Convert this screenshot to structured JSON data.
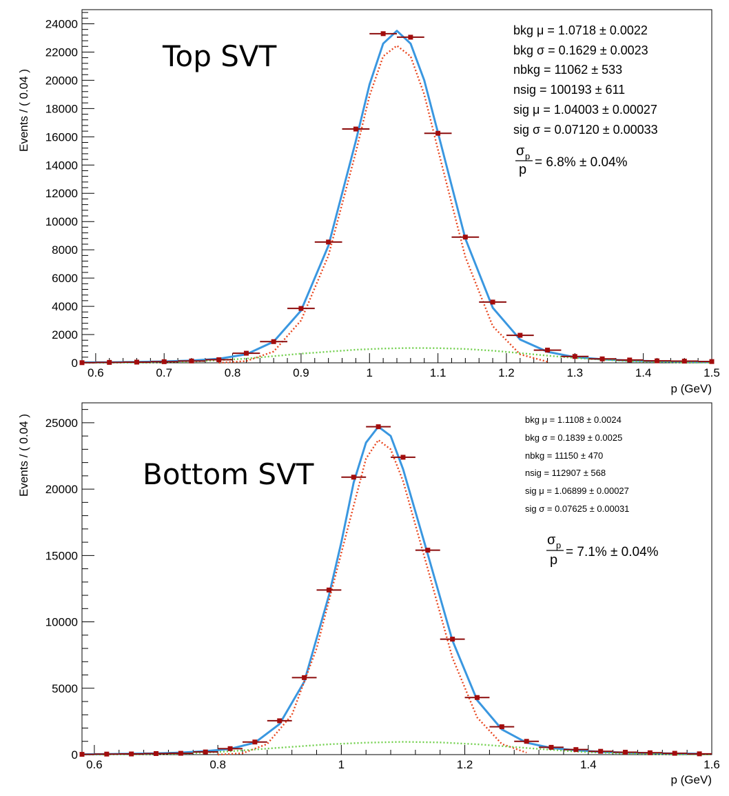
{
  "charts": [
    {
      "label": "Top SVT",
      "ylabel": "Events / ( 0.04 )",
      "xlabel": "p (GeV)",
      "stats": [
        "bkg μ =  1.0718 ± 0.0022",
        "bkg σ =  0.1629 ± 0.0023",
        "nbkg =  11062 ± 533",
        "nsig =  100193 ± 611",
        "sig μ =  1.04003 ± 0.00027",
        "sig σ =  0.07120 ± 0.00033"
      ],
      "resolution": {
        "num": "σ",
        "sub": "p",
        "den": "p",
        "value": "= 6.8% ±  0.04%"
      }
    },
    {
      "label": "Bottom SVT",
      "ylabel": "Events / ( 0.04 )",
      "xlabel": "p (GeV)",
      "stats": [
        "bkg μ =  1.1108 ± 0.0024",
        "bkg σ =  0.1839 ± 0.0025",
        "nbkg =  11150 ± 470",
        "nsig =  112907 ± 568",
        "sig μ =  1.06899 ± 0.00027",
        "sig σ =  0.07625 ± 0.00031"
      ],
      "resolution": {
        "num": "σ",
        "sub": "p",
        "den": "p",
        "value": "= 7.1% ± 0.04%"
      }
    }
  ],
  "chart_data": [
    {
      "type": "scatter",
      "title": "Top SVT",
      "xlabel": "p (GeV)",
      "ylabel": "Events / ( 0.04 )",
      "xlim": [
        0.58,
        1.5
      ],
      "ylim": [
        0,
        25000
      ],
      "xticks": [
        0.6,
        0.7,
        0.8,
        0.9,
        1,
        1.1,
        1.2,
        1.3,
        1.4,
        1.5
      ],
      "xtick_labels": [
        "0.6",
        "0.7",
        "0.8",
        "0.9",
        "1",
        "1.1",
        "1.2",
        "1.3",
        "1.4",
        "1.5"
      ],
      "yticks": [
        0,
        2000,
        4000,
        6000,
        8000,
        10000,
        12000,
        14000,
        16000,
        18000,
        20000,
        22000,
        24000
      ],
      "ytick_labels": [
        "0",
        "2000",
        "4000",
        "6000",
        "8000",
        "10000",
        "12000",
        "14000",
        "16000",
        "18000",
        "20000",
        "22000",
        "24000"
      ],
      "bin_width": 0.04,
      "points": {
        "x": [
          0.58,
          0.62,
          0.66,
          0.7,
          0.74,
          0.78,
          0.82,
          0.86,
          0.9,
          0.94,
          0.98,
          1.02,
          1.06,
          1.1,
          1.14,
          1.18,
          1.22,
          1.26,
          1.3,
          1.34,
          1.38,
          1.42,
          1.46,
          1.5
        ],
        "y": [
          10,
          30,
          50,
          80,
          130,
          220,
          680,
          1500,
          3850,
          8550,
          16550,
          23300,
          23050,
          16250,
          8900,
          4300,
          1950,
          900,
          450,
          280,
          200,
          140,
          120,
          90
        ]
      },
      "curves": [
        {
          "name": "total",
          "color": "#3a97e0",
          "style": "solid",
          "x": [
            0.58,
            0.62,
            0.66,
            0.7,
            0.74,
            0.78,
            0.82,
            0.86,
            0.9,
            0.94,
            0.98,
            1.0,
            1.02,
            1.04,
            1.06,
            1.08,
            1.1,
            1.14,
            1.18,
            1.22,
            1.26,
            1.3,
            1.34,
            1.38,
            1.42,
            1.46,
            1.5
          ],
          "y": [
            30,
            40,
            60,
            100,
            160,
            290,
            600,
            1500,
            3700,
            8300,
            15700,
            19700,
            22600,
            23500,
            22600,
            20000,
            16300,
            8800,
            3900,
            1650,
            780,
            400,
            250,
            160,
            110,
            80,
            50
          ]
        },
        {
          "name": "signal",
          "color": "#e8441c",
          "style": "dotted",
          "x": [
            0.78,
            0.82,
            0.86,
            0.9,
            0.94,
            0.98,
            1.0,
            1.02,
            1.04,
            1.06,
            1.08,
            1.1,
            1.14,
            1.18,
            1.22,
            1.26
          ],
          "y": [
            0,
            120,
            800,
            3000,
            7600,
            14900,
            18900,
            21700,
            22450,
            21700,
            19000,
            15100,
            7500,
            2600,
            600,
            80
          ]
        },
        {
          "name": "background",
          "color": "#6fcf4a",
          "style": "dotted",
          "x": [
            0.58,
            0.66,
            0.74,
            0.82,
            0.9,
            0.98,
            1.02,
            1.06,
            1.1,
            1.14,
            1.18,
            1.22,
            1.26,
            1.3,
            1.38,
            1.46,
            1.5
          ],
          "y": [
            0,
            15,
            80,
            300,
            650,
            930,
            1010,
            1050,
            1040,
            980,
            860,
            690,
            510,
            340,
            110,
            25,
            10
          ]
        }
      ]
    },
    {
      "type": "scatter",
      "title": "Bottom SVT",
      "xlabel": "p (GeV)",
      "ylabel": "Events / ( 0.04 )",
      "xlim": [
        0.58,
        1.6
      ],
      "ylim": [
        0,
        26500
      ],
      "xticks": [
        0.6,
        0.8,
        1,
        1.2,
        1.4,
        1.6
      ],
      "xtick_labels": [
        "0.6",
        "0.8",
        "1",
        "1.2",
        "1.4",
        "1.6"
      ],
      "yticks": [
        0,
        5000,
        10000,
        15000,
        20000,
        25000
      ],
      "ytick_labels": [
        "0",
        "5000",
        "10000",
        "15000",
        "20000",
        "25000"
      ],
      "bin_width": 0.04,
      "points": {
        "x": [
          0.58,
          0.62,
          0.66,
          0.7,
          0.74,
          0.78,
          0.82,
          0.86,
          0.9,
          0.94,
          0.98,
          1.02,
          1.06,
          1.1,
          1.14,
          1.18,
          1.22,
          1.26,
          1.3,
          1.34,
          1.38,
          1.42,
          1.46,
          1.5,
          1.54,
          1.58
        ],
        "y": [
          20,
          40,
          50,
          80,
          100,
          200,
          450,
          950,
          2550,
          5800,
          12400,
          20900,
          24700,
          22400,
          15400,
          8700,
          4300,
          2100,
          1000,
          550,
          380,
          250,
          180,
          140,
          100,
          60
        ]
      },
      "curves": [
        {
          "name": "total",
          "color": "#3a97e0",
          "style": "solid",
          "x": [
            0.58,
            0.62,
            0.66,
            0.7,
            0.74,
            0.78,
            0.82,
            0.86,
            0.9,
            0.94,
            0.98,
            1.0,
            1.02,
            1.04,
            1.06,
            1.08,
            1.1,
            1.14,
            1.18,
            1.22,
            1.26,
            1.3,
            1.34,
            1.38,
            1.42,
            1.46,
            1.5,
            1.54,
            1.58
          ],
          "y": [
            20,
            40,
            60,
            90,
            150,
            260,
            430,
            900,
            2300,
            5500,
            12000,
            16000,
            20500,
            23500,
            24700,
            24000,
            21500,
            15100,
            8600,
            4100,
            1900,
            900,
            500,
            320,
            210,
            150,
            110,
            80,
            60
          ]
        },
        {
          "name": "signal",
          "color": "#e8441c",
          "style": "dotted",
          "x": [
            0.8,
            0.84,
            0.88,
            0.92,
            0.96,
            1.0,
            1.04,
            1.06,
            1.08,
            1.1,
            1.14,
            1.18,
            1.22,
            1.26,
            1.3
          ],
          "y": [
            0,
            100,
            800,
            3000,
            8000,
            15200,
            22300,
            23700,
            23000,
            20600,
            14000,
            7300,
            2800,
            800,
            150
          ]
        },
        {
          "name": "background",
          "color": "#6fcf4a",
          "style": "dotted",
          "x": [
            0.58,
            0.66,
            0.74,
            0.82,
            0.9,
            0.98,
            1.04,
            1.1,
            1.16,
            1.22,
            1.3,
            1.38,
            1.46,
            1.54,
            1.6
          ],
          "y": [
            0,
            15,
            60,
            250,
            520,
            780,
            900,
            960,
            920,
            780,
            500,
            230,
            80,
            20,
            10
          ]
        }
      ]
    }
  ]
}
